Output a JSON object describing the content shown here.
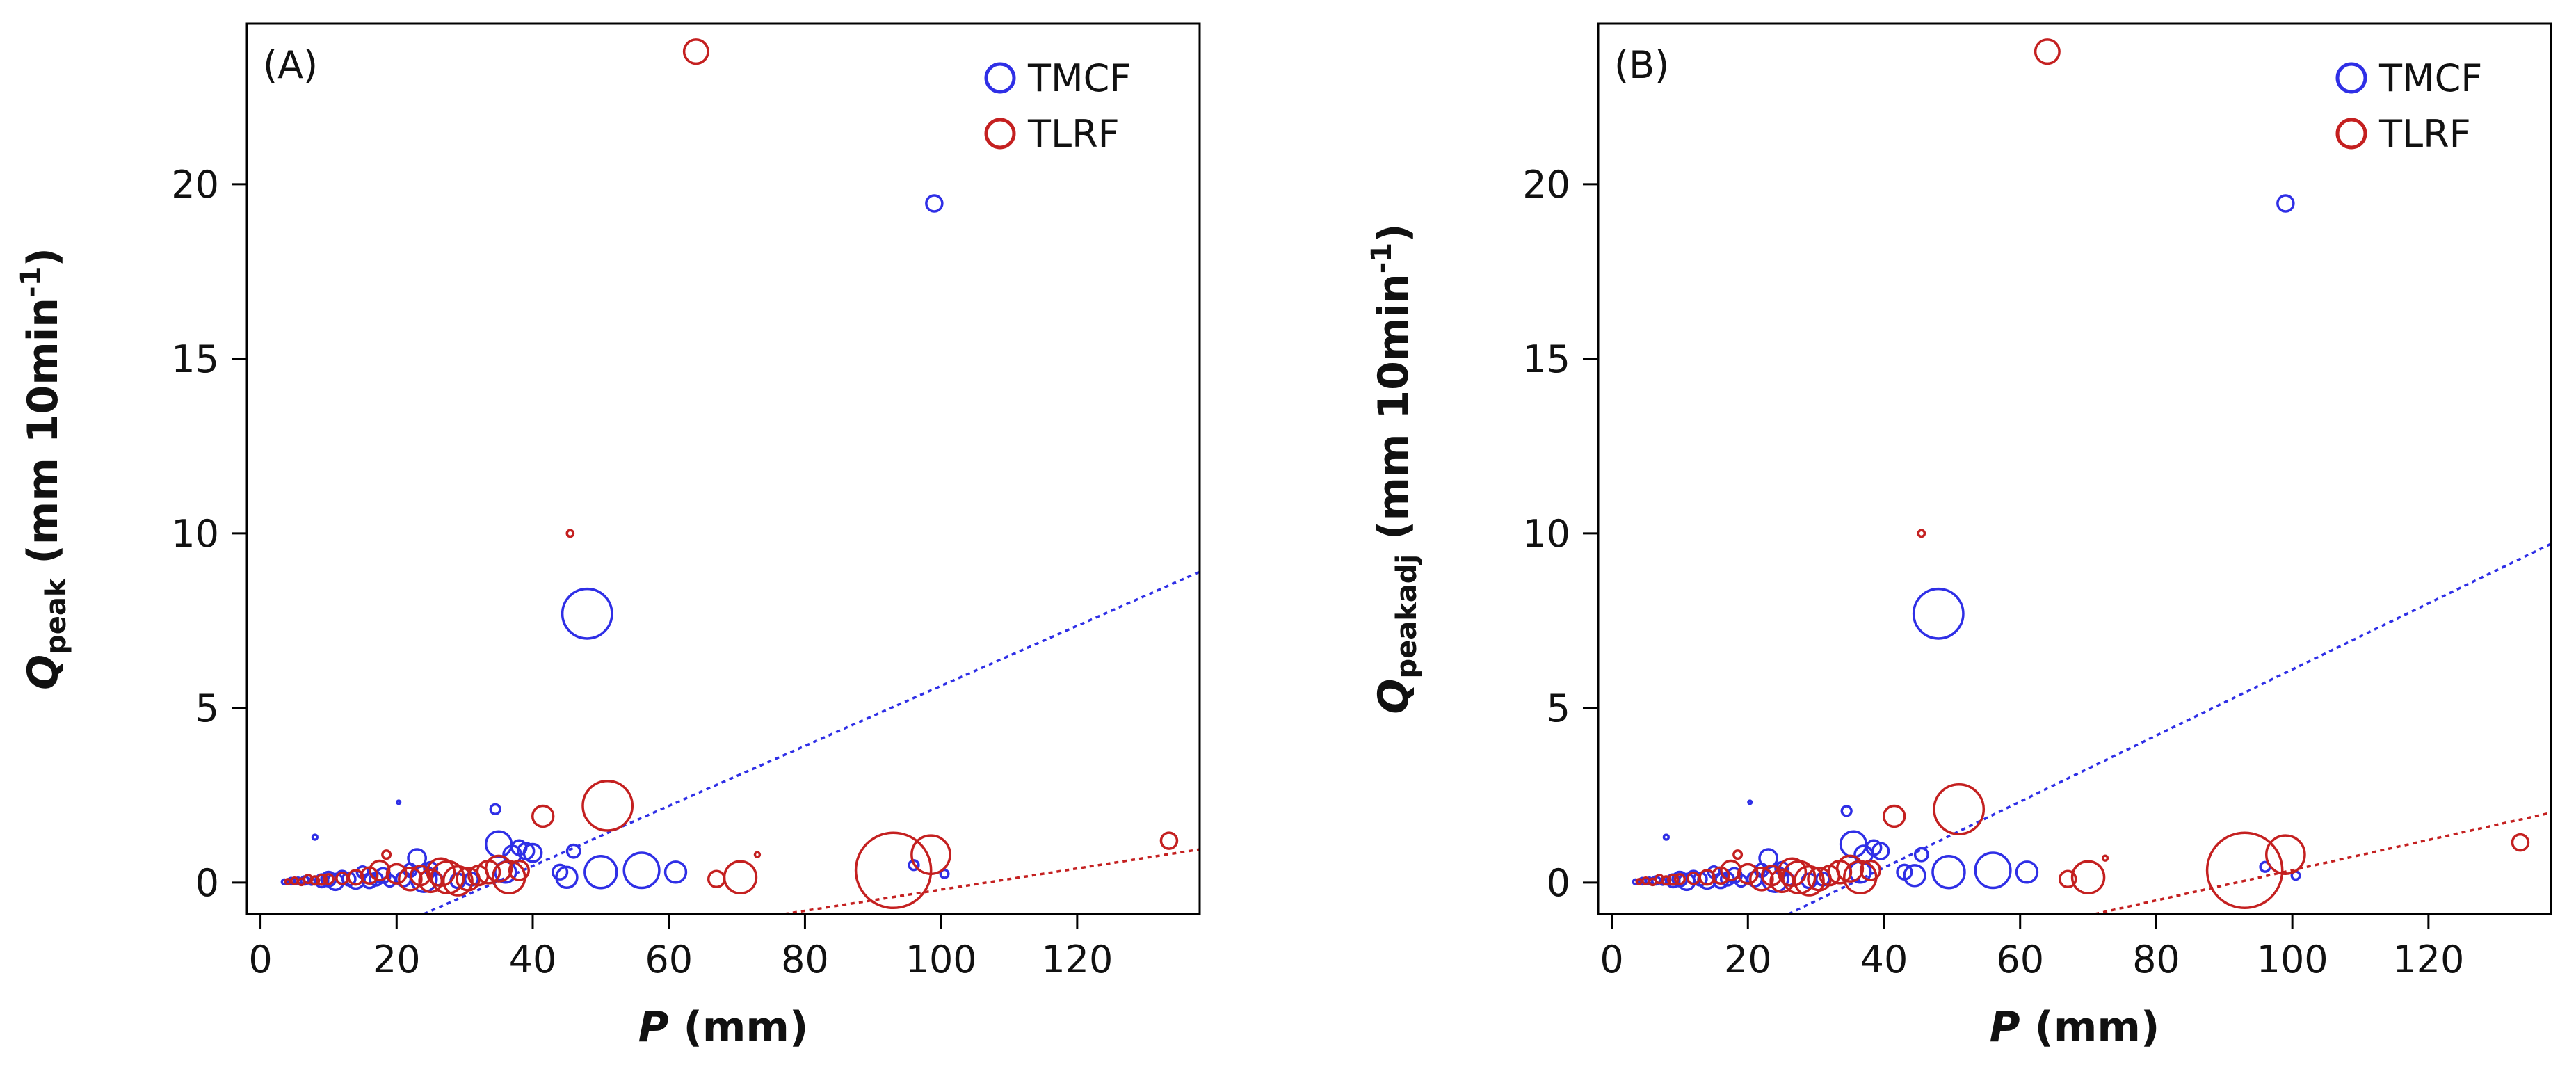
{
  "chart_data": [
    {
      "type": "scatter",
      "panel_label": "(A)",
      "xlabel": {
        "var": "P",
        "unit": " (mm)"
      },
      "ylabel": {
        "var": "Q",
        "sub": "peak",
        "unit": " (mm 10min",
        "sup": "-1",
        "close": ")"
      },
      "xlim": [
        -2,
        138
      ],
      "ylim": [
        -0.9,
        24.6
      ],
      "xticks": [
        0,
        20,
        40,
        60,
        80,
        100,
        120
      ],
      "yticks": [
        0,
        5,
        10,
        15,
        20
      ],
      "grid": false,
      "legend_position": "top-right",
      "series": [
        {
          "name": "TMCF",
          "color": "#2f2fe6",
          "points": [
            {
              "x": 3.5,
              "y": 0.02,
              "s": 3
            },
            {
              "x": 4.5,
              "y": 0.04,
              "s": 4
            },
            {
              "x": 5.5,
              "y": 0.05,
              "s": 4
            },
            {
              "x": 6.5,
              "y": 0.06,
              "s": 5
            },
            {
              "x": 7.5,
              "y": 0.03,
              "s": 4
            },
            {
              "x": 8,
              "y": 1.3,
              "s": 3
            },
            {
              "x": 9,
              "y": 0.05,
              "s": 8
            },
            {
              "x": 10,
              "y": 0.1,
              "s": 9
            },
            {
              "x": 11,
              "y": 0.02,
              "s": 10
            },
            {
              "x": 12,
              "y": 0.15,
              "s": 8
            },
            {
              "x": 13,
              "y": 0.1,
              "s": 8
            },
            {
              "x": 14,
              "y": 0.08,
              "s": 11
            },
            {
              "x": 15,
              "y": 0.3,
              "s": 7
            },
            {
              "x": 16,
              "y": 0.05,
              "s": 9
            },
            {
              "x": 17,
              "y": 0.1,
              "s": 8
            },
            {
              "x": 18,
              "y": 0.2,
              "s": 9
            },
            {
              "x": 19,
              "y": 0.05,
              "s": 7
            },
            {
              "x": 20.3,
              "y": 2.3,
              "s": 2
            },
            {
              "x": 21,
              "y": 0.1,
              "s": 9
            },
            {
              "x": 22,
              "y": 0.35,
              "s": 8
            },
            {
              "x": 23,
              "y": 0.7,
              "s": 11
            },
            {
              "x": 24,
              "y": 0.1,
              "s": 16
            },
            {
              "x": 25,
              "y": 0.4,
              "s": 8
            },
            {
              "x": 26,
              "y": 0.08,
              "s": 7
            },
            {
              "x": 29,
              "y": 0.05,
              "s": 9
            },
            {
              "x": 31,
              "y": 0.1,
              "s": 8
            },
            {
              "x": 34.5,
              "y": 2.1,
              "s": 6
            },
            {
              "x": 35,
              "y": 1.1,
              "s": 16
            },
            {
              "x": 36,
              "y": 0.3,
              "s": 13
            },
            {
              "x": 37,
              "y": 0.8,
              "s": 11
            },
            {
              "x": 38,
              "y": 1.0,
              "s": 9
            },
            {
              "x": 39,
              "y": 0.9,
              "s": 10
            },
            {
              "x": 40,
              "y": 0.85,
              "s": 11
            },
            {
              "x": 44,
              "y": 0.3,
              "s": 9
            },
            {
              "x": 45,
              "y": 0.15,
              "s": 13
            },
            {
              "x": 46,
              "y": 0.9,
              "s": 8
            },
            {
              "x": 48,
              "y": 7.7,
              "s": 31
            },
            {
              "x": 50,
              "y": 0.3,
              "s": 20
            },
            {
              "x": 56,
              "y": 0.35,
              "s": 22
            },
            {
              "x": 61,
              "y": 0.3,
              "s": 13
            },
            {
              "x": 96,
              "y": 0.5,
              "s": 6
            },
            {
              "x": 99,
              "y": 19.45,
              "s": 10
            },
            {
              "x": 100.5,
              "y": 0.25,
              "s": 5
            }
          ],
          "trend": {
            "x": [
              24,
              138
            ],
            "y": [
              -0.9,
              8.9
            ]
          }
        },
        {
          "name": "TLRF",
          "color": "#c42020",
          "points": [
            {
              "x": 4,
              "y": 0.03,
              "s": 3
            },
            {
              "x": 5,
              "y": 0.05,
              "s": 4
            },
            {
              "x": 6,
              "y": 0.02,
              "s": 4
            },
            {
              "x": 7,
              "y": 0.1,
              "s": 5
            },
            {
              "x": 8,
              "y": 0.06,
              "s": 5
            },
            {
              "x": 9,
              "y": 0.08,
              "s": 6
            },
            {
              "x": 10,
              "y": 0.1,
              "s": 6
            },
            {
              "x": 12,
              "y": 0.12,
              "s": 7
            },
            {
              "x": 14,
              "y": 0.15,
              "s": 9
            },
            {
              "x": 16,
              "y": 0.2,
              "s": 10
            },
            {
              "x": 17.5,
              "y": 0.35,
              "s": 12
            },
            {
              "x": 18.5,
              "y": 0.8,
              "s": 5
            },
            {
              "x": 20,
              "y": 0.25,
              "s": 12
            },
            {
              "x": 22,
              "y": 0.1,
              "s": 14
            },
            {
              "x": 23.5,
              "y": 0.2,
              "s": 12
            },
            {
              "x": 25,
              "y": 0.05,
              "s": 14
            },
            {
              "x": 26.5,
              "y": 0.3,
              "s": 17
            },
            {
              "x": 27.5,
              "y": 0.15,
              "s": 20
            },
            {
              "x": 29,
              "y": 0.05,
              "s": 18
            },
            {
              "x": 30.5,
              "y": 0.1,
              "s": 14
            },
            {
              "x": 32,
              "y": 0.2,
              "s": 12
            },
            {
              "x": 33.5,
              "y": 0.3,
              "s": 14
            },
            {
              "x": 35,
              "y": 0.4,
              "s": 16
            },
            {
              "x": 36.5,
              "y": 0.15,
              "s": 20
            },
            {
              "x": 38,
              "y": 0.35,
              "s": 12
            },
            {
              "x": 41.5,
              "y": 1.9,
              "s": 13
            },
            {
              "x": 45.5,
              "y": 10.0,
              "s": 4
            },
            {
              "x": 51,
              "y": 2.2,
              "s": 31
            },
            {
              "x": 64,
              "y": 23.8,
              "s": 15
            },
            {
              "x": 67,
              "y": 0.1,
              "s": 10
            },
            {
              "x": 70.5,
              "y": 0.15,
              "s": 20
            },
            {
              "x": 73,
              "y": 0.8,
              "s": 3
            },
            {
              "x": 93,
              "y": 0.35,
              "s": 47
            },
            {
              "x": 98.5,
              "y": 0.8,
              "s": 24
            },
            {
              "x": 133.5,
              "y": 1.2,
              "s": 10
            }
          ],
          "trend": {
            "x": [
              77,
              138
            ],
            "y": [
              -0.9,
              0.95
            ]
          }
        }
      ]
    },
    {
      "type": "scatter",
      "panel_label": "(B)",
      "xlabel": {
        "var": "P",
        "unit": " (mm)"
      },
      "ylabel": {
        "var": "Q",
        "sub": "peakadj",
        "unit": " (mm 10min",
        "sup": "-1",
        "close": ")"
      },
      "xlim": [
        -2,
        138
      ],
      "ylim": [
        -0.9,
        24.6
      ],
      "xticks": [
        0,
        20,
        40,
        60,
        80,
        100,
        120
      ],
      "yticks": [
        0,
        5,
        10,
        15,
        20
      ],
      "grid": false,
      "legend_position": "top-right",
      "series": [
        {
          "name": "TMCF",
          "color": "#2f2fe6",
          "points": [
            {
              "x": 3.5,
              "y": 0.02,
              "s": 3
            },
            {
              "x": 4.5,
              "y": 0.04,
              "s": 4
            },
            {
              "x": 5.5,
              "y": 0.05,
              "s": 4
            },
            {
              "x": 6.5,
              "y": 0.06,
              "s": 5
            },
            {
              "x": 7.5,
              "y": 0.03,
              "s": 4
            },
            {
              "x": 8,
              "y": 1.3,
              "s": 3
            },
            {
              "x": 9,
              "y": 0.05,
              "s": 8
            },
            {
              "x": 10,
              "y": 0.1,
              "s": 9
            },
            {
              "x": 11,
              "y": 0.02,
              "s": 10
            },
            {
              "x": 12,
              "y": 0.15,
              "s": 8
            },
            {
              "x": 13,
              "y": 0.1,
              "s": 8
            },
            {
              "x": 14,
              "y": 0.08,
              "s": 11
            },
            {
              "x": 15,
              "y": 0.3,
              "s": 7
            },
            {
              "x": 16,
              "y": 0.05,
              "s": 9
            },
            {
              "x": 17,
              "y": 0.1,
              "s": 8
            },
            {
              "x": 18,
              "y": 0.2,
              "s": 9
            },
            {
              "x": 19,
              "y": 0.05,
              "s": 7
            },
            {
              "x": 20.3,
              "y": 2.3,
              "s": 2
            },
            {
              "x": 21,
              "y": 0.1,
              "s": 9
            },
            {
              "x": 22,
              "y": 0.35,
              "s": 8
            },
            {
              "x": 23,
              "y": 0.7,
              "s": 11
            },
            {
              "x": 24,
              "y": 0.1,
              "s": 16
            },
            {
              "x": 25,
              "y": 0.4,
              "s": 8
            },
            {
              "x": 26,
              "y": 0.08,
              "s": 7
            },
            {
              "x": 29,
              "y": 0.05,
              "s": 9
            },
            {
              "x": 31,
              "y": 0.1,
              "s": 8
            },
            {
              "x": 34.5,
              "y": 2.05,
              "s": 6
            },
            {
              "x": 35.5,
              "y": 1.1,
              "s": 16
            },
            {
              "x": 36.5,
              "y": 0.3,
              "s": 13
            },
            {
              "x": 37,
              "y": 0.8,
              "s": 11
            },
            {
              "x": 38.5,
              "y": 1.0,
              "s": 9
            },
            {
              "x": 39.5,
              "y": 0.9,
              "s": 10
            },
            {
              "x": 43,
              "y": 0.3,
              "s": 9
            },
            {
              "x": 44.5,
              "y": 0.2,
              "s": 13
            },
            {
              "x": 45.5,
              "y": 0.8,
              "s": 8
            },
            {
              "x": 48,
              "y": 7.7,
              "s": 31
            },
            {
              "x": 49.5,
              "y": 0.3,
              "s": 20
            },
            {
              "x": 56,
              "y": 0.35,
              "s": 22
            },
            {
              "x": 61,
              "y": 0.3,
              "s": 13
            },
            {
              "x": 96,
              "y": 0.45,
              "s": 6
            },
            {
              "x": 99,
              "y": 19.45,
              "s": 10
            },
            {
              "x": 100.5,
              "y": 0.2,
              "s": 5
            }
          ],
          "trend": {
            "x": [
              26,
              138
            ],
            "y": [
              -0.9,
              9.7
            ]
          }
        },
        {
          "name": "TLRF",
          "color": "#c42020",
          "points": [
            {
              "x": 4,
              "y": 0.03,
              "s": 3
            },
            {
              "x": 5,
              "y": 0.05,
              "s": 4
            },
            {
              "x": 6,
              "y": 0.02,
              "s": 4
            },
            {
              "x": 7,
              "y": 0.1,
              "s": 5
            },
            {
              "x": 8,
              "y": 0.06,
              "s": 5
            },
            {
              "x": 9,
              "y": 0.08,
              "s": 6
            },
            {
              "x": 10,
              "y": 0.1,
              "s": 6
            },
            {
              "x": 12,
              "y": 0.12,
              "s": 7
            },
            {
              "x": 14,
              "y": 0.15,
              "s": 9
            },
            {
              "x": 16,
              "y": 0.2,
              "s": 10
            },
            {
              "x": 17.5,
              "y": 0.35,
              "s": 12
            },
            {
              "x": 18.5,
              "y": 0.8,
              "s": 5
            },
            {
              "x": 20,
              "y": 0.25,
              "s": 12
            },
            {
              "x": 22,
              "y": 0.1,
              "s": 14
            },
            {
              "x": 23.5,
              "y": 0.2,
              "s": 12
            },
            {
              "x": 25,
              "y": 0.05,
              "s": 14
            },
            {
              "x": 26.5,
              "y": 0.3,
              "s": 17
            },
            {
              "x": 27.5,
              "y": 0.15,
              "s": 20
            },
            {
              "x": 29,
              "y": 0.05,
              "s": 18
            },
            {
              "x": 30.5,
              "y": 0.1,
              "s": 14
            },
            {
              "x": 32,
              "y": 0.2,
              "s": 12
            },
            {
              "x": 33.5,
              "y": 0.3,
              "s": 14
            },
            {
              "x": 35,
              "y": 0.4,
              "s": 16
            },
            {
              "x": 36.5,
              "y": 0.15,
              "s": 20
            },
            {
              "x": 38,
              "y": 0.35,
              "s": 12
            },
            {
              "x": 41.5,
              "y": 1.9,
              "s": 13
            },
            {
              "x": 45.5,
              "y": 10.0,
              "s": 4
            },
            {
              "x": 51,
              "y": 2.1,
              "s": 31
            },
            {
              "x": 64,
              "y": 23.8,
              "s": 15
            },
            {
              "x": 67,
              "y": 0.1,
              "s": 10
            },
            {
              "x": 70,
              "y": 0.15,
              "s": 20
            },
            {
              "x": 72.5,
              "y": 0.7,
              "s": 3
            },
            {
              "x": 93,
              "y": 0.35,
              "s": 47
            },
            {
              "x": 99,
              "y": 0.8,
              "s": 24
            },
            {
              "x": 133.5,
              "y": 1.15,
              "s": 10
            }
          ],
          "trend": {
            "x": [
              71,
              138
            ],
            "y": [
              -0.9,
              2.0
            ]
          }
        }
      ]
    }
  ]
}
